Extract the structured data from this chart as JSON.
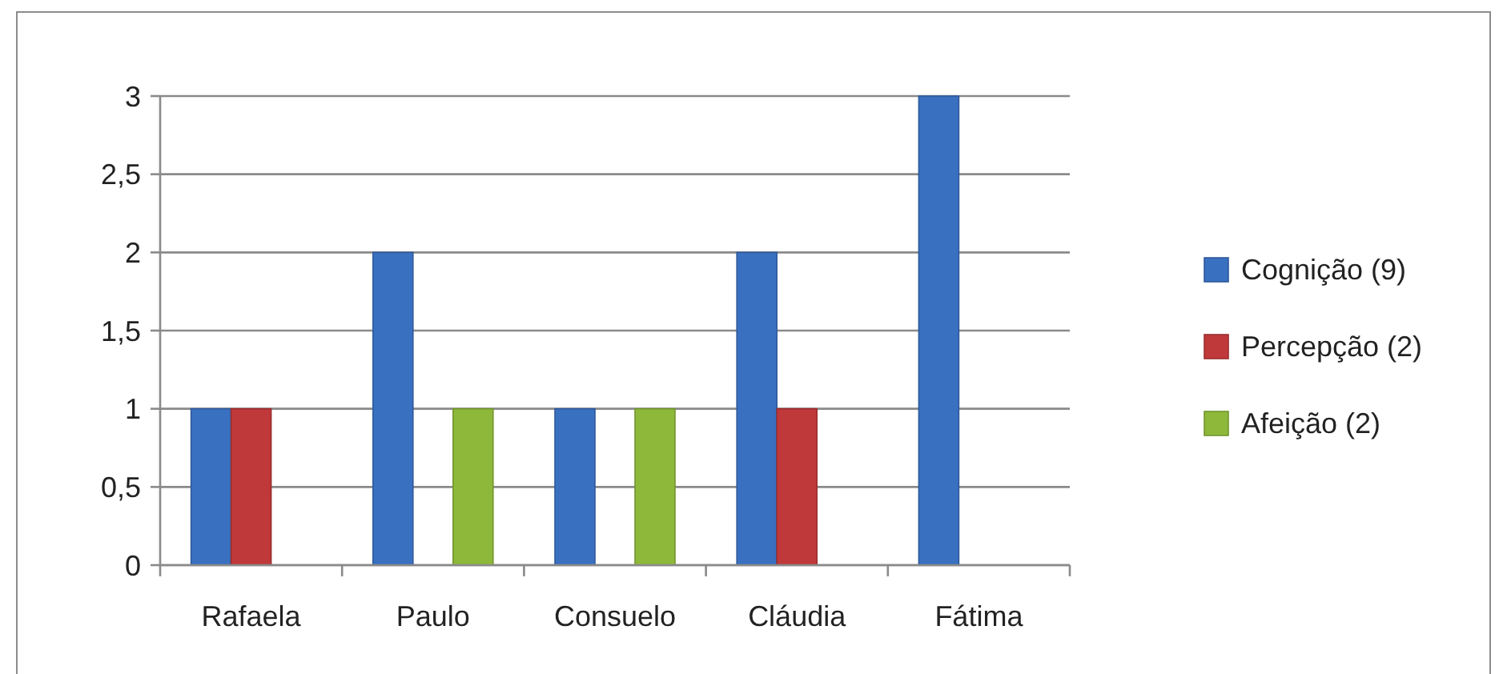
{
  "chart_data": {
    "type": "bar",
    "categories": [
      "Rafaela",
      "Paulo",
      "Consuelo",
      "Cláudia",
      "Fátima"
    ],
    "series": [
      {
        "name": "Cognição (9)",
        "color": "#3a70c0",
        "values": [
          1,
          2,
          1,
          2,
          3
        ]
      },
      {
        "name": "Percepção (2)",
        "color": "#c0393a",
        "values": [
          1,
          null,
          null,
          1,
          null
        ]
      },
      {
        "name": "Afeição (2)",
        "color": "#8db83a",
        "values": [
          null,
          1,
          1,
          null,
          null
        ]
      }
    ],
    "ylim": [
      0,
      3
    ],
    "yticks": [
      0,
      {
        "value": 0.5,
        "label": "0,5"
      },
      1,
      {
        "value": 1.5,
        "label": "1,5"
      },
      2,
      {
        "value": 2.5,
        "label": "2,5"
      },
      3
    ],
    "grid": "y",
    "legend": "right"
  }
}
